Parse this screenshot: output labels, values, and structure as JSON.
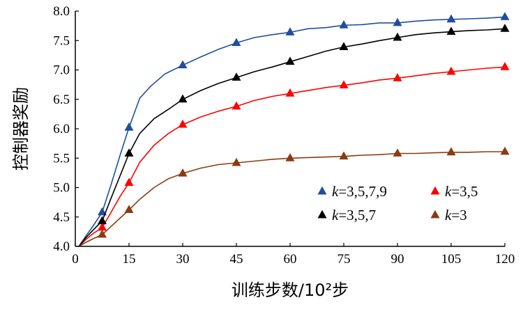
{
  "chart_data": {
    "type": "line",
    "title": "",
    "xlabel": "训练步数/10²步",
    "ylabel": "控制器奖励",
    "xlim": [
      0,
      120
    ],
    "ylim": [
      4.0,
      8.0
    ],
    "xticks": [
      0,
      15,
      30,
      45,
      60,
      75,
      90,
      105,
      120
    ],
    "xtick_labels": [
      "0",
      "15",
      "30",
      "45",
      "60",
      "75",
      "90",
      "105",
      "120"
    ],
    "yticks": [
      4.0,
      4.5,
      5.0,
      5.5,
      6.0,
      6.5,
      7.0,
      7.5,
      8.0
    ],
    "ytick_labels": [
      "4.0",
      "4.5",
      "5.0",
      "5.5",
      "6.0",
      "6.5",
      "7.0",
      "7.5",
      "8.0"
    ],
    "grid": false,
    "legend_position": "bottom-right",
    "marker_x": [
      7.5,
      15,
      30,
      45,
      60,
      75,
      90,
      105,
      120
    ],
    "series": [
      {
        "name_parts": [
          "k",
          "=3,5,7,9"
        ],
        "line_color": "#1f4e9e",
        "marker_color": "#1f4e9e",
        "x": [
          1,
          3,
          5,
          7.5,
          10,
          12.5,
          15,
          18,
          21,
          25,
          30,
          35,
          40,
          45,
          50,
          55,
          60,
          65,
          70,
          75,
          80,
          85,
          90,
          95,
          100,
          105,
          110,
          115,
          120
        ],
        "y": [
          4.0,
          4.18,
          4.35,
          4.58,
          5.05,
          5.55,
          6.02,
          6.52,
          6.72,
          6.93,
          7.08,
          7.22,
          7.35,
          7.46,
          7.55,
          7.6,
          7.64,
          7.7,
          7.72,
          7.76,
          7.77,
          7.8,
          7.8,
          7.83,
          7.85,
          7.86,
          7.87,
          7.88,
          7.9
        ],
        "markers": [
          4.58,
          6.02,
          7.08,
          7.46,
          7.64,
          7.76,
          7.8,
          7.86,
          7.9
        ]
      },
      {
        "name_parts": [
          "k",
          "=3,5"
        ],
        "line_color": "#ff0000",
        "marker_color": "#ff0000",
        "x": [
          1,
          3,
          5,
          7.5,
          10,
          12.5,
          15,
          18,
          22,
          26,
          30,
          35,
          40,
          45,
          50,
          55,
          60,
          65,
          70,
          75,
          80,
          85,
          90,
          95,
          100,
          105,
          110,
          115,
          120
        ],
        "y": [
          4.0,
          4.12,
          4.22,
          4.32,
          4.58,
          4.85,
          5.08,
          5.43,
          5.72,
          5.92,
          6.07,
          6.2,
          6.3,
          6.38,
          6.48,
          6.55,
          6.6,
          6.65,
          6.7,
          6.74,
          6.78,
          6.83,
          6.86,
          6.9,
          6.94,
          6.97,
          7.0,
          7.03,
          7.05
        ],
        "markers": [
          4.32,
          5.08,
          6.07,
          6.38,
          6.6,
          6.74,
          6.86,
          6.97,
          7.05
        ]
      },
      {
        "name_parts": [
          "k",
          "=3,5,7"
        ],
        "line_color": "#000000",
        "marker_color": "#000000",
        "x": [
          1,
          3,
          5,
          7.5,
          10,
          12.5,
          15,
          18,
          22,
          26,
          30,
          35,
          40,
          45,
          50,
          55,
          60,
          65,
          70,
          75,
          80,
          85,
          90,
          95,
          100,
          105,
          110,
          115,
          120
        ],
        "y": [
          4.0,
          4.15,
          4.28,
          4.43,
          4.82,
          5.2,
          5.58,
          5.92,
          6.17,
          6.33,
          6.5,
          6.65,
          6.77,
          6.87,
          6.97,
          7.05,
          7.14,
          7.23,
          7.32,
          7.39,
          7.44,
          7.5,
          7.55,
          7.6,
          7.63,
          7.65,
          7.67,
          7.68,
          7.7
        ],
        "markers": [
          4.43,
          5.58,
          6.5,
          6.87,
          7.14,
          7.39,
          7.55,
          7.65,
          7.7
        ]
      },
      {
        "name_parts": [
          "k",
          "=3"
        ],
        "line_color": "#8b3a12",
        "marker_color": "#8b3a12",
        "x": [
          1,
          3,
          5,
          7.5,
          10,
          12.5,
          15,
          18,
          22,
          26,
          30,
          35,
          40,
          45,
          50,
          55,
          60,
          65,
          70,
          75,
          80,
          85,
          90,
          95,
          100,
          105,
          110,
          115,
          120
        ],
        "y": [
          4.0,
          4.07,
          4.13,
          4.2,
          4.34,
          4.48,
          4.62,
          4.8,
          5.0,
          5.15,
          5.24,
          5.33,
          5.39,
          5.42,
          5.45,
          5.48,
          5.5,
          5.51,
          5.52,
          5.53,
          5.55,
          5.56,
          5.58,
          5.58,
          5.59,
          5.6,
          5.6,
          5.61,
          5.61
        ],
        "markers": [
          4.2,
          4.62,
          5.24,
          5.42,
          5.5,
          5.53,
          5.58,
          5.6,
          5.61
        ]
      }
    ]
  }
}
